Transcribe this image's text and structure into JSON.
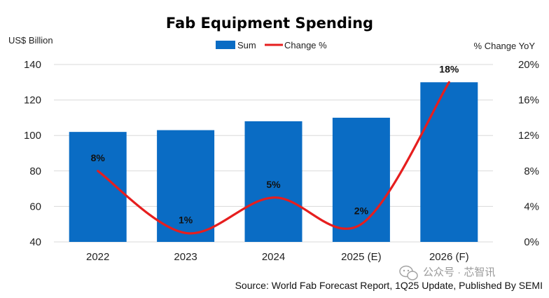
{
  "chart_data": {
    "type": "bar",
    "title": "Fab Equipment Spending",
    "categories": [
      "2022",
      "2023",
      "2024",
      "2025 (E)",
      "2026 (F)"
    ],
    "series": [
      {
        "name": "Sum",
        "type": "bar",
        "axis": "left",
        "color": "#0a6cc4",
        "values": [
          102,
          103,
          108,
          110,
          130
        ]
      },
      {
        "name": "Change %",
        "type": "line",
        "axis": "right",
        "color": "#e61e1e",
        "values": [
          8,
          1,
          5,
          2,
          18
        ],
        "labels": [
          "8%",
          "1%",
          "5%",
          "2%",
          "18%"
        ]
      }
    ],
    "ylabel_left": "US$ Billion",
    "ylabel_right": "% Change YoY",
    "ylim_left": [
      40,
      140
    ],
    "yticks_left": [
      "40",
      "60",
      "80",
      "100",
      "120",
      "140"
    ],
    "ylim_right": [
      0,
      20
    ],
    "yticks_right": [
      "0%",
      "4%",
      "8%",
      "12%",
      "16%",
      "20%"
    ],
    "legend_position": "top",
    "grid": true
  },
  "source": "Source: World Fab Forecast Report, 1Q25 Update, Published By SEMI",
  "watermark": "公众号 · 芯智讯",
  "colors": {
    "grid": "#d9d9d9",
    "watermark": "#9a9a9a"
  },
  "icons": {
    "watermark_icon": "wechat-icon"
  }
}
